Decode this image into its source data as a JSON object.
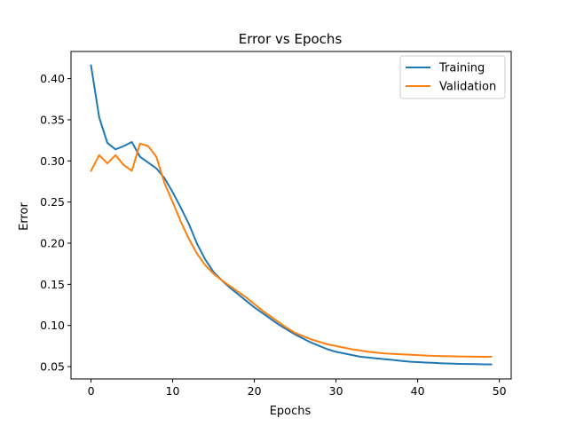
{
  "chart_data": {
    "type": "line",
    "title": "Error vs Epochs",
    "xlabel": "Epochs",
    "ylabel": "Error",
    "xlim": [
      -2.45,
      51.45
    ],
    "ylim": [
      0.035,
      0.433
    ],
    "xticks": [
      0,
      10,
      20,
      30,
      40,
      50
    ],
    "yticks": [
      0.05,
      0.1,
      0.15,
      0.2,
      0.25,
      0.3,
      0.35,
      0.4
    ],
    "grid": false,
    "legend": "top-right",
    "x": [
      0,
      1,
      2,
      3,
      4,
      5,
      6,
      7,
      8,
      9,
      10,
      11,
      12,
      13,
      14,
      15,
      16,
      17,
      18,
      19,
      20,
      21,
      22,
      23,
      24,
      25,
      26,
      27,
      28,
      29,
      30,
      31,
      32,
      33,
      34,
      35,
      36,
      37,
      38,
      39,
      40,
      41,
      42,
      43,
      44,
      45,
      46,
      47,
      48,
      49
    ],
    "series": [
      {
        "name": "Training",
        "color": "#1f77b4",
        "values": [
          0.416,
          0.353,
          0.322,
          0.314,
          0.318,
          0.323,
          0.305,
          0.298,
          0.291,
          0.279,
          0.262,
          0.243,
          0.223,
          0.199,
          0.18,
          0.165,
          0.155,
          0.146,
          0.138,
          0.13,
          0.122,
          0.115,
          0.108,
          0.101,
          0.095,
          0.089,
          0.084,
          0.079,
          0.075,
          0.071,
          0.068,
          0.066,
          0.064,
          0.062,
          0.061,
          0.06,
          0.059,
          0.058,
          0.057,
          0.056,
          0.0555,
          0.055,
          0.0545,
          0.054,
          0.0537,
          0.0534,
          0.0532,
          0.053,
          0.0528,
          0.0527
        ]
      },
      {
        "name": "Validation",
        "color": "#ff7f0e",
        "values": [
          0.288,
          0.307,
          0.297,
          0.307,
          0.295,
          0.288,
          0.321,
          0.318,
          0.305,
          0.273,
          0.25,
          0.226,
          0.205,
          0.187,
          0.173,
          0.163,
          0.155,
          0.148,
          0.141,
          0.134,
          0.126,
          0.118,
          0.111,
          0.104,
          0.097,
          0.091,
          0.087,
          0.083,
          0.08,
          0.077,
          0.075,
          0.073,
          0.071,
          0.0695,
          0.068,
          0.067,
          0.066,
          0.0655,
          0.065,
          0.0645,
          0.064,
          0.0635,
          0.063,
          0.0628,
          0.0626,
          0.0624,
          0.0622,
          0.0621,
          0.062,
          0.062
        ]
      }
    ]
  }
}
